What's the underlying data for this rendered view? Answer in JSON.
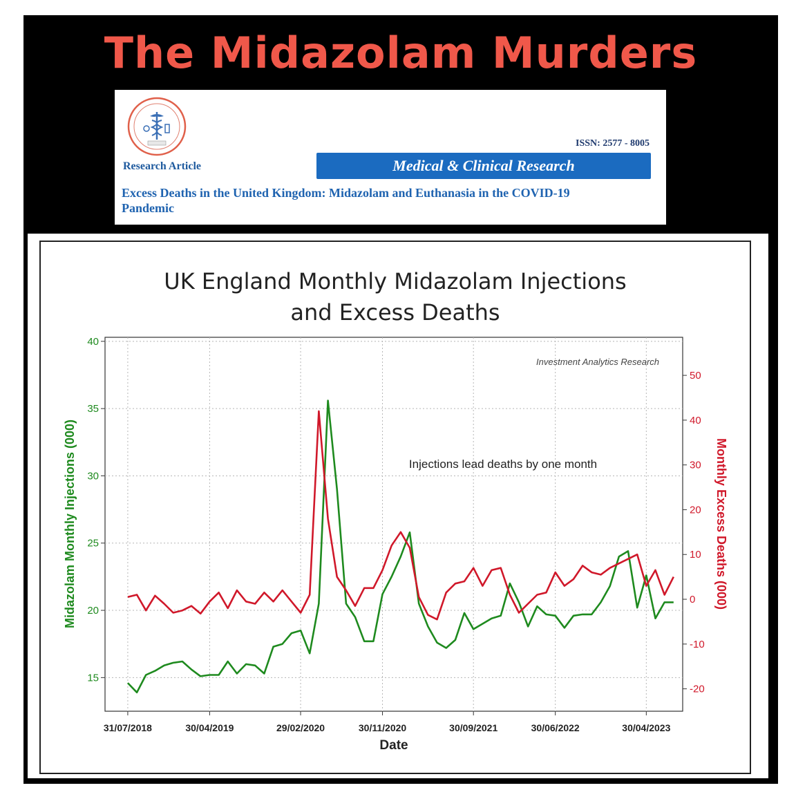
{
  "headline": "The Midazolam Murders",
  "colors": {
    "headline": "#f0584a",
    "frame": "#000000",
    "banner": "#1b6bc0",
    "article_type": "#1e5a9e",
    "article_title": "#1f63b0",
    "injections": "#1e8a1e",
    "deaths": "#d0182a",
    "grid": "#b5b5b5"
  },
  "paper": {
    "logo_icon": "caduceus-seal-icon",
    "article_type": "Research Article",
    "issn": "ISSN: 2577 - 8005",
    "journal": "Medical & Clinical Research",
    "title_line1": "Excess Deaths in the United Kingdom: Midazolam and Euthanasia in the COVID-19",
    "title_line2": "Pandemic"
  },
  "chart_data": {
    "type": "line",
    "title_line1": "UK England Monthly Midazolam Injections",
    "title_line2": "and Excess Deaths",
    "xlabel": "Date",
    "ylabel_left": "Midazolam Monthly Injections (000)",
    "ylabel_right": "Monthly Excess Deaths (000)",
    "source_note": "Investment Analytics Research",
    "annotation": "Injections lead deaths by one month",
    "x_tick_labels": [
      "31/07/2018",
      "30/04/2019",
      "29/02/2020",
      "30/11/2020",
      "30/09/2021",
      "30/06/2022",
      "30/04/2023"
    ],
    "x_tick_months": [
      0,
      9,
      19,
      28,
      38,
      47,
      57
    ],
    "x_domain_months": [
      -2.5,
      61
    ],
    "y_left": {
      "min": 12.5,
      "max": 40.3,
      "ticks": [
        15,
        20,
        25,
        30,
        35,
        40
      ]
    },
    "y_right": {
      "min": -25,
      "max": 58.5,
      "ticks": [
        -20,
        -10,
        0,
        10,
        20,
        30,
        40,
        50
      ]
    },
    "grid": true,
    "x_month_index_start": "31/07/2018",
    "series": [
      {
        "name": "Midazolam Monthly Injections (000)",
        "axis": "left",
        "values": [
          14.6,
          13.9,
          15.2,
          15.5,
          15.9,
          16.1,
          16.2,
          15.6,
          15.1,
          15.2,
          15.2,
          16.2,
          15.3,
          16.0,
          15.9,
          15.3,
          17.3,
          17.5,
          18.3,
          18.5,
          16.8,
          20.5,
          35.6,
          29.0,
          20.5,
          19.5,
          17.7,
          17.7,
          21.2,
          22.5,
          24.0,
          25.8,
          20.5,
          18.8,
          17.6,
          17.2,
          17.8,
          19.8,
          18.6,
          19.0,
          19.4,
          19.6,
          22.0,
          20.6,
          18.8,
          20.3,
          19.7,
          19.6,
          18.7,
          19.6,
          19.7,
          19.7,
          20.6,
          21.8,
          24.0,
          24.4,
          20.2,
          22.6,
          19.4,
          20.6,
          20.6
        ],
        "note": "monthly values, index 0 = 31/07/2018"
      },
      {
        "name": "Monthly Excess Deaths (000)",
        "axis": "right",
        "values": [
          0.5,
          1.0,
          -2.5,
          0.8,
          -1.0,
          -3.0,
          -2.5,
          -1.5,
          -3.2,
          -0.5,
          1.5,
          -2.0,
          2.0,
          -0.5,
          -1.0,
          1.5,
          -0.5,
          2.0,
          -0.5,
          -3.0,
          1.0,
          42.0,
          18.0,
          5.0,
          2.0,
          -1.5,
          2.5,
          2.5,
          6.5,
          12.0,
          15.0,
          11.5,
          0.5,
          -3.5,
          -4.5,
          1.5,
          3.5,
          4.0,
          7.0,
          3.0,
          6.5,
          7.0,
          1.0,
          -3.0,
          -1.0,
          1.0,
          1.5,
          6.0,
          3.0,
          4.5,
          7.5,
          6.0,
          5.5,
          7.0,
          8.0,
          9.0,
          10.0,
          3.0,
          6.5,
          1.0,
          5.0
        ],
        "note": "monthly values, index 0 = 31/07/2018"
      }
    ]
  }
}
